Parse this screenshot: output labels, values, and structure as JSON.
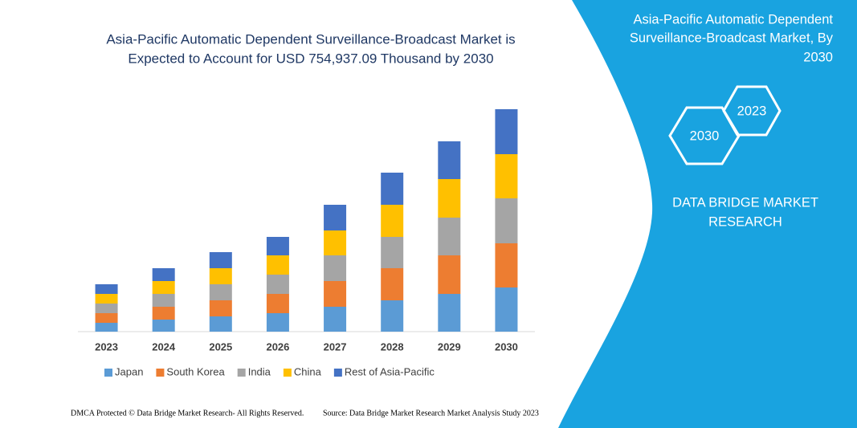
{
  "chart_data": {
    "type": "stacked_bar",
    "title_lines": [
      "Asia-Pacific Automatic Dependent Surveillance-Broadcast Market is",
      "Expected to Account for USD 754,937.09 Thousand by 2030"
    ],
    "categories": [
      "2023",
      "2024",
      "2025",
      "2026",
      "2027",
      "2028",
      "2029",
      "2030"
    ],
    "series": [
      {
        "name": "Japan",
        "color": "#5b9bd5",
        "values": [
          11,
          15,
          19,
          23,
          31,
          39,
          47,
          55
        ]
      },
      {
        "name": "South Korea",
        "color": "#ed7d31",
        "values": [
          12,
          16,
          20,
          24,
          32,
          40,
          48,
          55
        ]
      },
      {
        "name": "India",
        "color": "#a5a5a5",
        "values": [
          12,
          16,
          20,
          24,
          32,
          39,
          47,
          56
        ]
      },
      {
        "name": "China",
        "color": "#ffc000",
        "values": [
          12,
          16,
          20,
          24,
          31,
          40,
          48,
          55
        ]
      },
      {
        "name": "Rest of Asia-Pacific",
        "color": "#4472c4",
        "values": [
          12,
          16,
          20,
          23,
          32,
          40,
          47,
          56
        ]
      }
    ],
    "ylim": [
      0,
      300
    ]
  },
  "panel": {
    "title_lines": [
      "Asia-Pacific Automatic Dependent",
      "Surveillance-Broadcast Market, By",
      "2030"
    ],
    "hex_labels": [
      "2023",
      "2030"
    ],
    "brand_lines": [
      "DATA BRIDGE MARKET",
      "RESEARCH"
    ]
  },
  "footer": {
    "copyright": "DMCA Protected © Data Bridge Market Research-  All Rights Reserved.",
    "source": "Source: Data Bridge Market Research  Market Analysis Study 2023"
  }
}
